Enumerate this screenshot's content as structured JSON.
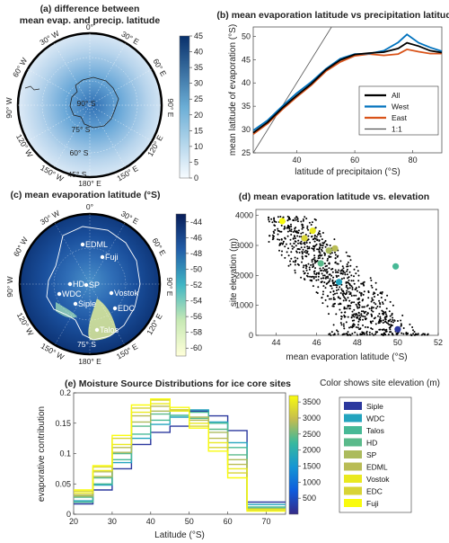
{
  "colors": {
    "blue_dark": "#08306b",
    "blue_mid": "#4a90c8",
    "blue_light": "#deebf7",
    "line_all": "#000000",
    "line_west": "#0072bd",
    "line_east": "#d95319",
    "line_11": "#555555",
    "parula_low": "#352a87",
    "parula_high": "#f9fb0e"
  },
  "chart_data": [
    {
      "id": "a",
      "type": "heatmap",
      "title_line1": "(a) difference between",
      "title_line2": "mean evap. and precip. latitude",
      "colorbar": {
        "ticks": [
          "45",
          "40",
          "35",
          "30",
          "25",
          "20",
          "15",
          "10",
          "5",
          "0"
        ],
        "range": [
          0,
          45
        ]
      },
      "lon_labels": [
        "0°",
        "30° E",
        "60° E",
        "90° E",
        "120° E",
        "150° E",
        "180° E",
        "150° W",
        "120° W",
        "90° W",
        "60° W",
        "30° W"
      ],
      "lat_labels": [
        "90° S",
        "75° S",
        "60° S",
        "45° S"
      ]
    },
    {
      "id": "b",
      "type": "line",
      "title": "(b) mean evaporation latitude vs precipitation latitude",
      "xlabel": "latitude of precipitaion (°S)",
      "ylabel": "mean latitude of evaporation (°S)",
      "xlim": [
        25,
        90
      ],
      "ylim": [
        25,
        52
      ],
      "xticks": [
        "40",
        "60",
        "80"
      ],
      "yticks": [
        "25",
        "30",
        "35",
        "40",
        "45",
        "50"
      ],
      "legend_position": "center-right",
      "series": [
        {
          "name": "All",
          "x": [
            25,
            30,
            35,
            40,
            45,
            50,
            55,
            60,
            65,
            70,
            75,
            78,
            82,
            86,
            90
          ],
          "y": [
            29.3,
            31.6,
            34.6,
            37.3,
            39.8,
            42.8,
            44.9,
            46.1,
            46.4,
            46.6,
            47.4,
            48.6,
            47.9,
            46.9,
            46.5
          ]
        },
        {
          "name": "West",
          "x": [
            25,
            30,
            35,
            40,
            45,
            50,
            55,
            60,
            65,
            70,
            75,
            78,
            82,
            86,
            90
          ],
          "y": [
            29.8,
            32.0,
            35.0,
            37.8,
            40.2,
            43.0,
            45.2,
            46.2,
            46.3,
            46.9,
            48.7,
            50.4,
            48.6,
            47.6,
            46.8
          ]
        },
        {
          "name": "East",
          "x": [
            25,
            30,
            35,
            40,
            45,
            50,
            55,
            60,
            65,
            70,
            75,
            78,
            82,
            86,
            90
          ],
          "y": [
            29.0,
            31.3,
            34.3,
            37.0,
            39.5,
            42.5,
            44.5,
            45.8,
            46.2,
            45.9,
            46.2,
            47.2,
            46.7,
            46.3,
            46.3
          ]
        },
        {
          "name": "1:1",
          "x": [
            25,
            52
          ],
          "y": [
            25,
            52
          ]
        }
      ]
    },
    {
      "id": "c",
      "type": "heatmap",
      "title": "(c) mean evaporation latitude (°S)",
      "colorbar": {
        "ticks": [
          "-44",
          "-46",
          "-48",
          "-50",
          "-52",
          "-54",
          "-56",
          "-58",
          "-60"
        ],
        "range": [
          -61,
          -43
        ]
      },
      "lon_labels": [
        "0°",
        "30° E",
        "60° E",
        "90° E",
        "120° E",
        "150° E",
        "180° E",
        "150° W",
        "120° W",
        "90° W",
        "60° W",
        "30° W"
      ],
      "lat_labels": [
        "75° S"
      ],
      "sites": [
        "EDML",
        "Fuji",
        "HD",
        "SP",
        "WDC",
        "Siple",
        "Vostok",
        "EDC",
        "Talos"
      ]
    },
    {
      "id": "d",
      "type": "scatter",
      "title": "(d) mean evaporation latitude vs. elevation",
      "xlabel": "mean evaporation latitude (°S)",
      "ylabel": "site elevation (m)",
      "xlim": [
        43,
        52
      ],
      "ylim": [
        0,
        4200
      ],
      "xticks": [
        "44",
        "46",
        "48",
        "50",
        "52"
      ],
      "yticks": [
        "0",
        "1000",
        "2000",
        "3000",
        "4000"
      ],
      "highlight_points": [
        {
          "site": "Siple",
          "x": 50.0,
          "y": 200
        },
        {
          "site": "WDC",
          "x": 47.1,
          "y": 1780
        },
        {
          "site": "Talos",
          "x": 49.9,
          "y": 2300
        },
        {
          "site": "HD",
          "x": 46.2,
          "y": 2400
        },
        {
          "site": "SP",
          "x": 46.6,
          "y": 2830
        },
        {
          "site": "EDML",
          "x": 46.9,
          "y": 2900
        },
        {
          "site": "Vostok",
          "x": 45.8,
          "y": 3490
        },
        {
          "site": "EDC",
          "x": 45.4,
          "y": 3240
        },
        {
          "site": "Fuji",
          "x": 44.3,
          "y": 3810
        }
      ]
    },
    {
      "id": "e",
      "type": "line",
      "title": "(e) Moisture Source Distributions for ice core sites",
      "xlabel": "Latitude (°S)",
      "ylabel": "evaporative contribution",
      "xlim": [
        20,
        75
      ],
      "ylim": [
        0,
        0.2
      ],
      "xticks": [
        "20",
        "30",
        "40",
        "50",
        "60",
        "70"
      ],
      "yticks": [
        "0",
        "0.05",
        "0.1",
        "0.15",
        "0.2"
      ],
      "colorbar_title": "Color shows site elevation (m)",
      "colorbar": {
        "ticks": [
          "3500",
          "3000",
          "2500",
          "2000",
          "1500",
          "1000",
          "500"
        ],
        "range": [
          0,
          3700
        ]
      },
      "x_edges": [
        20,
        25,
        30,
        35,
        40,
        45,
        50,
        55,
        60,
        65,
        75
      ],
      "series": [
        {
          "name": "Siple",
          "elev": 200,
          "values": [
            0.017,
            0.04,
            0.075,
            0.115,
            0.135,
            0.145,
            0.17,
            0.162,
            0.138,
            0.02
          ]
        },
        {
          "name": "WDC",
          "elev": 1780,
          "values": [
            0.022,
            0.048,
            0.085,
            0.125,
            0.148,
            0.16,
            0.172,
            0.152,
            0.118,
            0.016
          ]
        },
        {
          "name": "Talos",
          "elev": 2300,
          "values": [
            0.02,
            0.05,
            0.09,
            0.132,
            0.155,
            0.163,
            0.168,
            0.15,
            0.11,
            0.012
          ]
        },
        {
          "name": "HD",
          "elev": 2400,
          "values": [
            0.028,
            0.06,
            0.1,
            0.145,
            0.165,
            0.17,
            0.158,
            0.14,
            0.098,
            0.01
          ]
        },
        {
          "name": "SP",
          "elev": 2830,
          "values": [
            0.03,
            0.062,
            0.102,
            0.152,
            0.17,
            0.172,
            0.16,
            0.135,
            0.09,
            0.009
          ]
        },
        {
          "name": "EDML",
          "elev": 2900,
          "values": [
            0.032,
            0.07,
            0.11,
            0.162,
            0.178,
            0.172,
            0.155,
            0.125,
            0.082,
            0.008
          ]
        },
        {
          "name": "Vostok",
          "elev": 3490,
          "values": [
            0.035,
            0.072,
            0.115,
            0.168,
            0.182,
            0.17,
            0.15,
            0.118,
            0.075,
            0.008
          ]
        },
        {
          "name": "EDC",
          "elev": 3240,
          "values": [
            0.038,
            0.078,
            0.125,
            0.175,
            0.188,
            0.172,
            0.145,
            0.11,
            0.068,
            0.006
          ]
        },
        {
          "name": "Fuji",
          "elev": 3810,
          "values": [
            0.04,
            0.08,
            0.13,
            0.18,
            0.19,
            0.176,
            0.142,
            0.104,
            0.06,
            0.005
          ]
        }
      ]
    }
  ]
}
